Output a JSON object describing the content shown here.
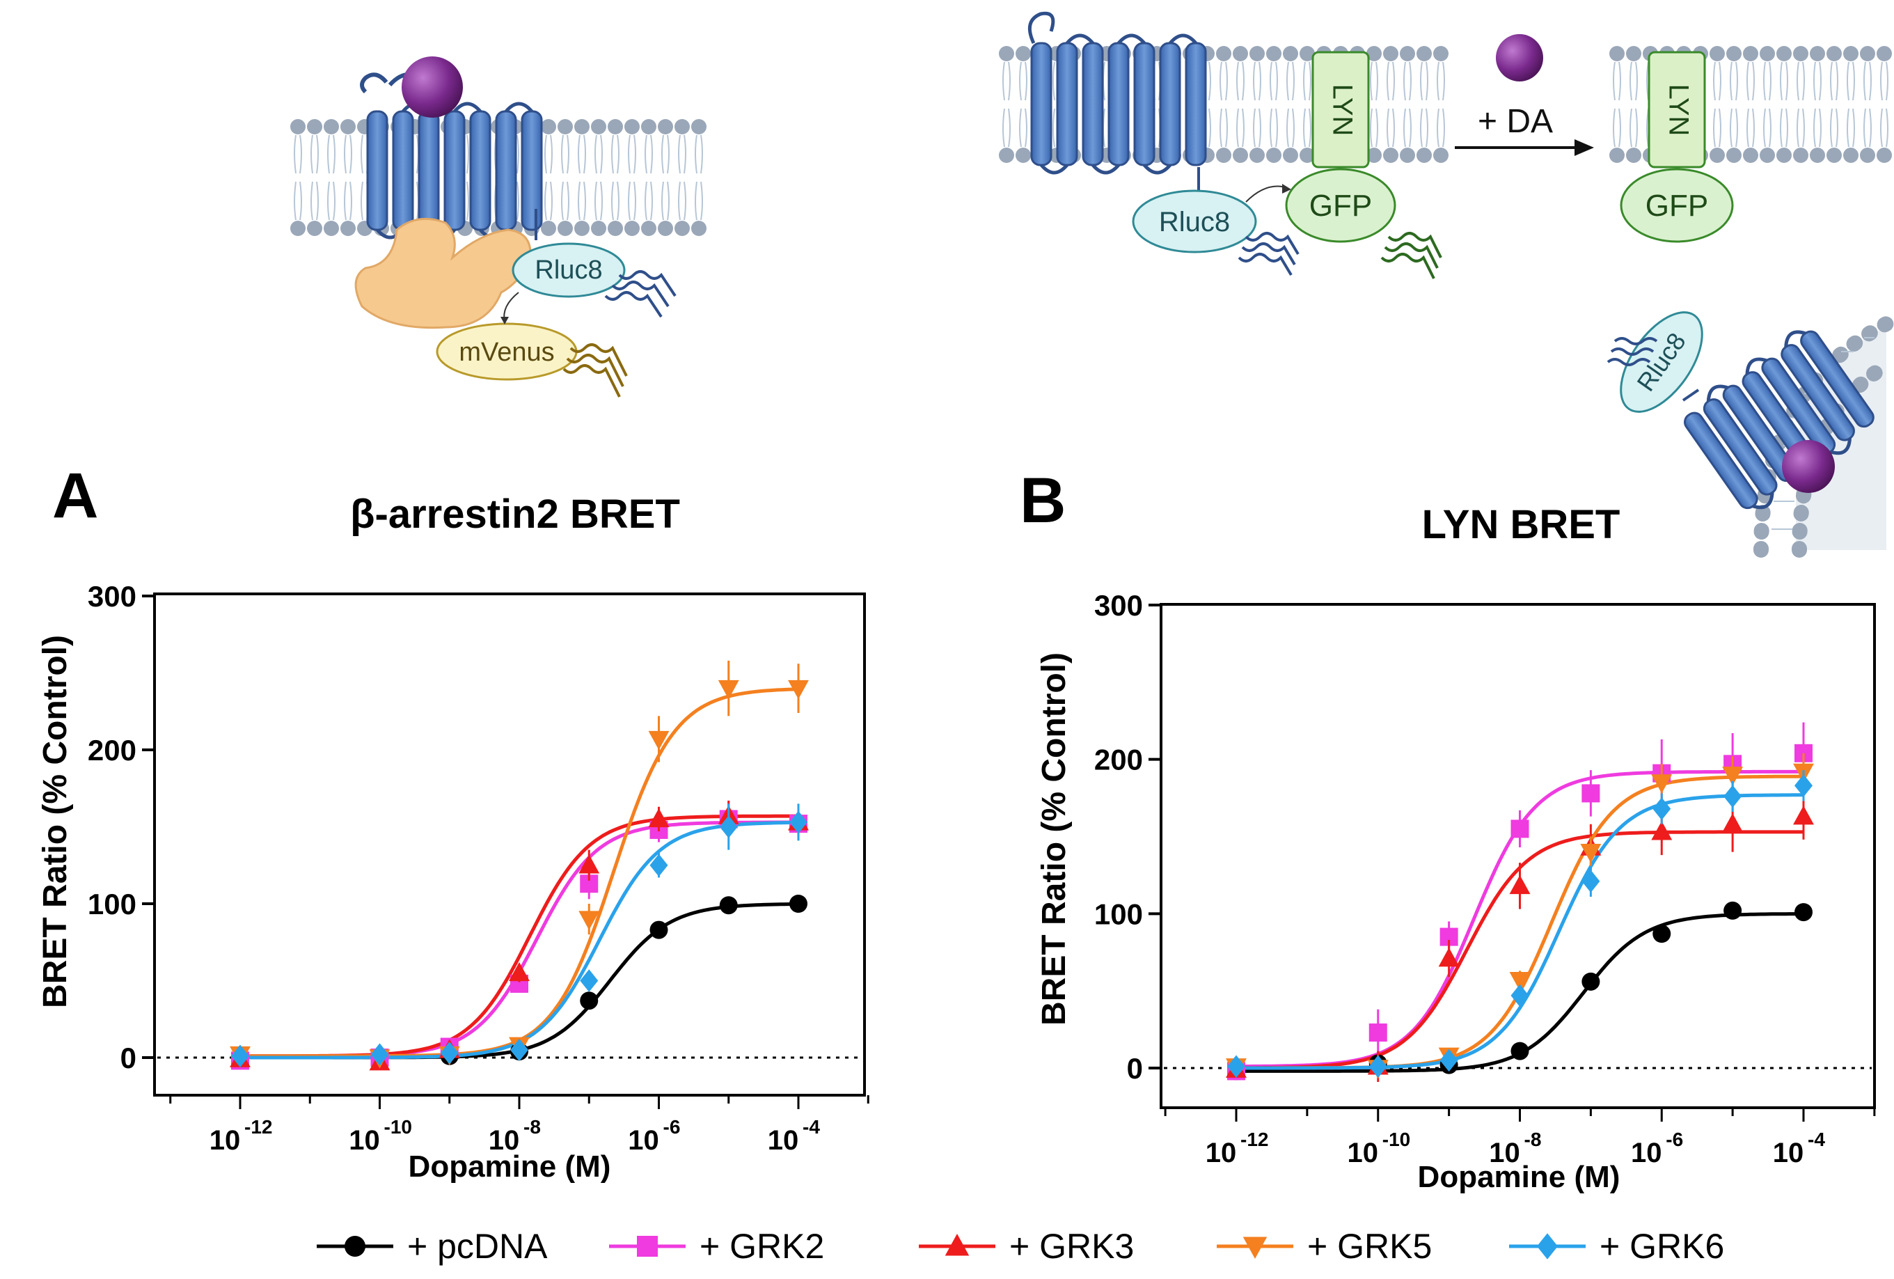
{
  "colors": {
    "pcDNA": "#000000",
    "GRK2": "#ef3bdf",
    "GRK3": "#ee1c1c",
    "GRK5": "#f4801f",
    "GRK6": "#2aa2ea",
    "membrane_head": "#9aa7b8",
    "membrane_tail": "#b7c6d6",
    "receptor": "#4a78c0",
    "ligand": "#7a2a8d",
    "arrestin": "#f6c98e",
    "rluc_fill": "#d8f1f3",
    "rluc_edge": "#2f8a96",
    "venus_fill": "#fbf3c8",
    "venus_edge": "#b89a2a",
    "gfp_fill": "#daf1cf",
    "gfp_edge": "#3a8a2a",
    "lyn_fill": "#dcf0c8"
  },
  "schematics": {
    "arrestin": {
      "rluc": "Rluc8",
      "venus": "mVenus"
    },
    "lyn": {
      "lyn": "LYN",
      "gfp": "GFP",
      "rluc": "Rluc8",
      "arrow_label": "+ DA",
      "lyn2": "LYN",
      "gfp2": "GFP",
      "rluc3": "Rluc8"
    }
  },
  "legend": [
    {
      "key": "pcDNA",
      "label": "+ pcDNA",
      "marker": "circle"
    },
    {
      "key": "GRK2",
      "label": "+ GRK2",
      "marker": "square"
    },
    {
      "key": "GRK3",
      "label": "+ GRK3",
      "marker": "triangle-up"
    },
    {
      "key": "GRK5",
      "label": "+ GRK5",
      "marker": "triangle-down"
    },
    {
      "key": "GRK6",
      "label": "+ GRK6",
      "marker": "diamond"
    }
  ],
  "chart_data": [
    {
      "panel": "A",
      "type": "scatter",
      "title": "β-arrestin2 BRET",
      "xlabel": "Dopamine (M)",
      "ylabel": "BRET Ratio (% Control)",
      "xscale": "log10",
      "xlim": [
        -13,
        -3
      ],
      "ylim": [
        -10,
        300
      ],
      "yticks": [
        0,
        100,
        200,
        300
      ],
      "xticks": [
        -12,
        -10,
        -8,
        -6,
        -4
      ],
      "xtick_labels": [
        "10",
        "10",
        "10",
        "10",
        "10"
      ],
      "xtick_exponents": [
        "-12",
        "-10",
        "-8",
        "-6",
        "-4"
      ],
      "reference_line_y": 0,
      "x_log10": [
        -12,
        -10,
        -9,
        -8,
        -7,
        -6,
        -5,
        -4
      ],
      "series": [
        {
          "key": "pcDNA",
          "name": "+ pcDNA",
          "values": [
            0,
            0,
            1,
            4,
            37,
            83,
            99,
            100
          ],
          "errors": [
            2,
            2,
            2,
            2,
            4,
            5,
            4,
            4
          ],
          "fit": {
            "bottom": 0,
            "top": 100,
            "logEC50": -6.7,
            "hill": 1
          }
        },
        {
          "key": "GRK2",
          "name": "+ GRK2",
          "values": [
            -2,
            0,
            7,
            48,
            113,
            148,
            155,
            152
          ],
          "errors": [
            3,
            3,
            3,
            5,
            10,
            8,
            12,
            10
          ],
          "fit": {
            "bottom": 1,
            "top": 153,
            "logEC50": -7.75,
            "hill": 1
          }
        },
        {
          "key": "GRK3",
          "name": "+ GRK3",
          "values": [
            -1,
            -3,
            5,
            55,
            125,
            155,
            157,
            153
          ],
          "errors": [
            3,
            3,
            3,
            6,
            10,
            8,
            10,
            10
          ],
          "fit": {
            "bottom": 1,
            "top": 157,
            "logEC50": -7.85,
            "hill": 1
          }
        },
        {
          "key": "GRK5",
          "name": "+ GRK5",
          "values": [
            2,
            0,
            2,
            8,
            90,
            207,
            240,
            240
          ],
          "errors": [
            3,
            3,
            3,
            3,
            10,
            15,
            18,
            16
          ],
          "fit": {
            "bottom": 1,
            "top": 240,
            "logEC50": -6.65,
            "hill": 1
          }
        },
        {
          "key": "GRK6",
          "name": "+ GRK6",
          "values": [
            1,
            2,
            3,
            5,
            50,
            125,
            150,
            153
          ],
          "errors": [
            3,
            3,
            3,
            3,
            6,
            8,
            15,
            12
          ],
          "fit": {
            "bottom": 0,
            "top": 153,
            "logEC50": -6.85,
            "hill": 1
          }
        }
      ]
    },
    {
      "panel": "B",
      "type": "scatter",
      "title": "LYN BRET",
      "xlabel": "Dopamine (M)",
      "ylabel": "BRET Ratio  (% Control)",
      "xscale": "log10",
      "xlim": [
        -13,
        -3
      ],
      "ylim": [
        -10,
        300
      ],
      "yticks": [
        0,
        100,
        200,
        300
      ],
      "xticks": [
        -12,
        -10,
        -8,
        -6,
        -4
      ],
      "xtick_labels": [
        "10",
        "10",
        "10",
        "10",
        "10"
      ],
      "xtick_exponents": [
        "-12",
        "-10",
        "-8",
        "-6",
        "-4"
      ],
      "reference_line_y": 0,
      "x_log10": [
        -12,
        -10,
        -9,
        -8,
        -7,
        -6,
        -5,
        -4
      ],
      "series": [
        {
          "key": "pcDNA",
          "name": "+ pcDNA",
          "values": [
            -2,
            3,
            2,
            11,
            56,
            87,
            102,
            101
          ],
          "errors": [
            3,
            3,
            3,
            4,
            5,
            5,
            5,
            4
          ],
          "fit": {
            "bottom": -2,
            "top": 100,
            "logEC50": -7.1,
            "hill": 1
          }
        },
        {
          "key": "GRK2",
          "name": "+ GRK2",
          "values": [
            -2,
            23,
            85,
            155,
            178,
            191,
            197,
            204
          ],
          "errors": [
            4,
            15,
            10,
            12,
            15,
            22,
            20,
            20
          ],
          "fit": {
            "bottom": 1,
            "top": 192,
            "logEC50": -8.65,
            "hill": 1
          }
        },
        {
          "key": "GRK3",
          "name": "+ GRK3",
          "values": [
            -1,
            1,
            71,
            118,
            143,
            153,
            158,
            163
          ],
          "errors": [
            3,
            10,
            12,
            15,
            15,
            15,
            18,
            15
          ],
          "fit": {
            "bottom": 0,
            "top": 153,
            "logEC50": -8.75,
            "hill": 1
          }
        },
        {
          "key": "GRK5",
          "name": "+ GRK5",
          "values": [
            1,
            0,
            8,
            57,
            140,
            185,
            190,
            192
          ],
          "errors": [
            3,
            3,
            3,
            6,
            10,
            12,
            12,
            12
          ],
          "fit": {
            "bottom": 0,
            "top": 189,
            "logEC50": -7.55,
            "hill": 1
          }
        },
        {
          "key": "GRK6",
          "name": "+ GRK6",
          "values": [
            1,
            1,
            5,
            47,
            121,
            168,
            176,
            183
          ],
          "errors": [
            3,
            3,
            3,
            5,
            10,
            10,
            10,
            10
          ],
          "fit": {
            "bottom": 0,
            "top": 177,
            "logEC50": -7.45,
            "hill": 1
          }
        }
      ]
    }
  ]
}
